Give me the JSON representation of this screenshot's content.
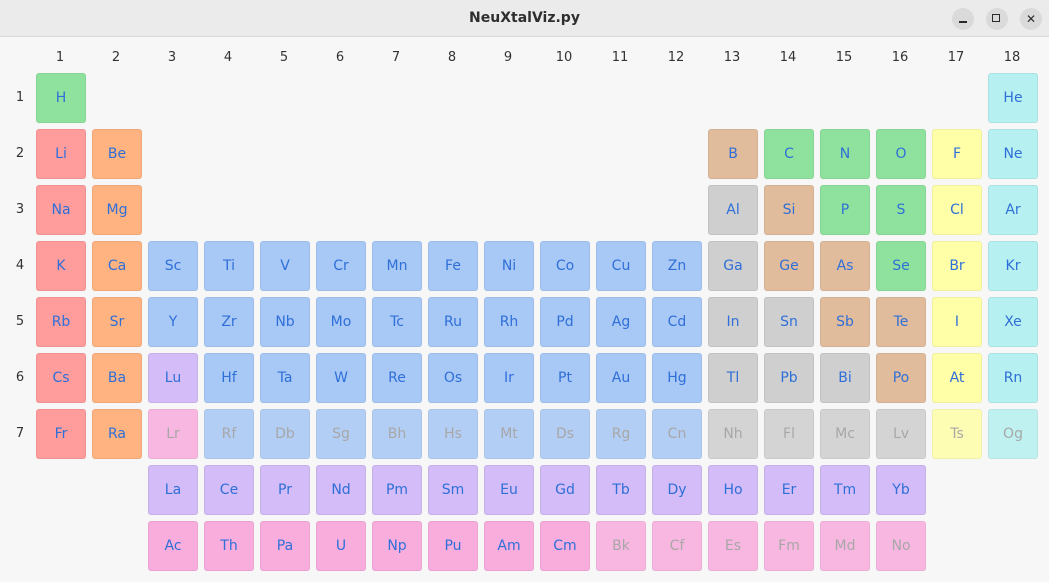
{
  "window": {
    "title": "NeuXtalViz.py",
    "minimize_icon": "minimize-icon",
    "maximize_icon": "maximize-icon",
    "close_icon": "close-icon",
    "close_glyph": "✕"
  },
  "colors": {
    "hydrogen_nonmetal": "#8fe29e",
    "alkali_metal": "#ff9c9c",
    "alkaline_earth": "#ffb380",
    "transition_metal": "#a8c8f5",
    "metalloid": "#e0bc9c",
    "post_transition": "#cfcfcf",
    "halogen": "#ffffa8",
    "noble_gas": "#b7f0f0",
    "lanthanide": "#d3bcf7",
    "actinide": "#f9addd",
    "symbol_active": "#2f6fd8",
    "symbol_disabled": "#9a9a9a"
  },
  "group_labels": [
    "1",
    "2",
    "3",
    "4",
    "5",
    "6",
    "7",
    "8",
    "9",
    "10",
    "11",
    "12",
    "13",
    "14",
    "15",
    "16",
    "17",
    "18"
  ],
  "period_labels": [
    "1",
    "2",
    "3",
    "4",
    "5",
    "6",
    "7"
  ],
  "elements": [
    {
      "symbol": "H",
      "col": 1,
      "row": 1,
      "cat": "hydrogen_nonmetal",
      "enabled": true
    },
    {
      "symbol": "He",
      "col": 18,
      "row": 1,
      "cat": "noble_gas",
      "enabled": true
    },
    {
      "symbol": "Li",
      "col": 1,
      "row": 2,
      "cat": "alkali_metal",
      "enabled": true
    },
    {
      "symbol": "Be",
      "col": 2,
      "row": 2,
      "cat": "alkaline_earth",
      "enabled": true
    },
    {
      "symbol": "B",
      "col": 13,
      "row": 2,
      "cat": "metalloid",
      "enabled": true
    },
    {
      "symbol": "C",
      "col": 14,
      "row": 2,
      "cat": "hydrogen_nonmetal",
      "enabled": true
    },
    {
      "symbol": "N",
      "col": 15,
      "row": 2,
      "cat": "hydrogen_nonmetal",
      "enabled": true
    },
    {
      "symbol": "O",
      "col": 16,
      "row": 2,
      "cat": "hydrogen_nonmetal",
      "enabled": true
    },
    {
      "symbol": "F",
      "col": 17,
      "row": 2,
      "cat": "halogen",
      "enabled": true
    },
    {
      "symbol": "Ne",
      "col": 18,
      "row": 2,
      "cat": "noble_gas",
      "enabled": true
    },
    {
      "symbol": "Na",
      "col": 1,
      "row": 3,
      "cat": "alkali_metal",
      "enabled": true
    },
    {
      "symbol": "Mg",
      "col": 2,
      "row": 3,
      "cat": "alkaline_earth",
      "enabled": true
    },
    {
      "symbol": "Al",
      "col": 13,
      "row": 3,
      "cat": "post_transition",
      "enabled": true
    },
    {
      "symbol": "Si",
      "col": 14,
      "row": 3,
      "cat": "metalloid",
      "enabled": true
    },
    {
      "symbol": "P",
      "col": 15,
      "row": 3,
      "cat": "hydrogen_nonmetal",
      "enabled": true
    },
    {
      "symbol": "S",
      "col": 16,
      "row": 3,
      "cat": "hydrogen_nonmetal",
      "enabled": true
    },
    {
      "symbol": "Cl",
      "col": 17,
      "row": 3,
      "cat": "halogen",
      "enabled": true
    },
    {
      "symbol": "Ar",
      "col": 18,
      "row": 3,
      "cat": "noble_gas",
      "enabled": true
    },
    {
      "symbol": "K",
      "col": 1,
      "row": 4,
      "cat": "alkali_metal",
      "enabled": true
    },
    {
      "symbol": "Ca",
      "col": 2,
      "row": 4,
      "cat": "alkaline_earth",
      "enabled": true
    },
    {
      "symbol": "Sc",
      "col": 3,
      "row": 4,
      "cat": "transition_metal",
      "enabled": true
    },
    {
      "symbol": "Ti",
      "col": 4,
      "row": 4,
      "cat": "transition_metal",
      "enabled": true
    },
    {
      "symbol": "V",
      "col": 5,
      "row": 4,
      "cat": "transition_metal",
      "enabled": true
    },
    {
      "symbol": "Cr",
      "col": 6,
      "row": 4,
      "cat": "transition_metal",
      "enabled": true
    },
    {
      "symbol": "Mn",
      "col": 7,
      "row": 4,
      "cat": "transition_metal",
      "enabled": true
    },
    {
      "symbol": "Fe",
      "col": 8,
      "row": 4,
      "cat": "transition_metal",
      "enabled": true
    },
    {
      "symbol": "Ni",
      "col": 9,
      "row": 4,
      "cat": "transition_metal",
      "enabled": true
    },
    {
      "symbol": "Co",
      "col": 10,
      "row": 4,
      "cat": "transition_metal",
      "enabled": true
    },
    {
      "symbol": "Cu",
      "col": 11,
      "row": 4,
      "cat": "transition_metal",
      "enabled": true
    },
    {
      "symbol": "Zn",
      "col": 12,
      "row": 4,
      "cat": "transition_metal",
      "enabled": true
    },
    {
      "symbol": "Ga",
      "col": 13,
      "row": 4,
      "cat": "post_transition",
      "enabled": true
    },
    {
      "symbol": "Ge",
      "col": 14,
      "row": 4,
      "cat": "metalloid",
      "enabled": true
    },
    {
      "symbol": "As",
      "col": 15,
      "row": 4,
      "cat": "metalloid",
      "enabled": true
    },
    {
      "symbol": "Se",
      "col": 16,
      "row": 4,
      "cat": "hydrogen_nonmetal",
      "enabled": true
    },
    {
      "symbol": "Br",
      "col": 17,
      "row": 4,
      "cat": "halogen",
      "enabled": true
    },
    {
      "symbol": "Kr",
      "col": 18,
      "row": 4,
      "cat": "noble_gas",
      "enabled": true
    },
    {
      "symbol": "Rb",
      "col": 1,
      "row": 5,
      "cat": "alkali_metal",
      "enabled": true
    },
    {
      "symbol": "Sr",
      "col": 2,
      "row": 5,
      "cat": "alkaline_earth",
      "enabled": true
    },
    {
      "symbol": "Y",
      "col": 3,
      "row": 5,
      "cat": "transition_metal",
      "enabled": true
    },
    {
      "symbol": "Zr",
      "col": 4,
      "row": 5,
      "cat": "transition_metal",
      "enabled": true
    },
    {
      "symbol": "Nb",
      "col": 5,
      "row": 5,
      "cat": "transition_metal",
      "enabled": true
    },
    {
      "symbol": "Mo",
      "col": 6,
      "row": 5,
      "cat": "transition_metal",
      "enabled": true
    },
    {
      "symbol": "Tc",
      "col": 7,
      "row": 5,
      "cat": "transition_metal",
      "enabled": true
    },
    {
      "symbol": "Ru",
      "col": 8,
      "row": 5,
      "cat": "transition_metal",
      "enabled": true
    },
    {
      "symbol": "Rh",
      "col": 9,
      "row": 5,
      "cat": "transition_metal",
      "enabled": true
    },
    {
      "symbol": "Pd",
      "col": 10,
      "row": 5,
      "cat": "transition_metal",
      "enabled": true
    },
    {
      "symbol": "Ag",
      "col": 11,
      "row": 5,
      "cat": "transition_metal",
      "enabled": true
    },
    {
      "symbol": "Cd",
      "col": 12,
      "row": 5,
      "cat": "transition_metal",
      "enabled": true
    },
    {
      "symbol": "In",
      "col": 13,
      "row": 5,
      "cat": "post_transition",
      "enabled": true
    },
    {
      "symbol": "Sn",
      "col": 14,
      "row": 5,
      "cat": "post_transition",
      "enabled": true
    },
    {
      "symbol": "Sb",
      "col": 15,
      "row": 5,
      "cat": "metalloid",
      "enabled": true
    },
    {
      "symbol": "Te",
      "col": 16,
      "row": 5,
      "cat": "metalloid",
      "enabled": true
    },
    {
      "symbol": "I",
      "col": 17,
      "row": 5,
      "cat": "halogen",
      "enabled": true
    },
    {
      "symbol": "Xe",
      "col": 18,
      "row": 5,
      "cat": "noble_gas",
      "enabled": true
    },
    {
      "symbol": "Cs",
      "col": 1,
      "row": 6,
      "cat": "alkali_metal",
      "enabled": true
    },
    {
      "symbol": "Ba",
      "col": 2,
      "row": 6,
      "cat": "alkaline_earth",
      "enabled": true
    },
    {
      "symbol": "Lu",
      "col": 3,
      "row": 6,
      "cat": "lanthanide",
      "enabled": true
    },
    {
      "symbol": "Hf",
      "col": 4,
      "row": 6,
      "cat": "transition_metal",
      "enabled": true
    },
    {
      "symbol": "Ta",
      "col": 5,
      "row": 6,
      "cat": "transition_metal",
      "enabled": true
    },
    {
      "symbol": "W",
      "col": 6,
      "row": 6,
      "cat": "transition_metal",
      "enabled": true
    },
    {
      "symbol": "Re",
      "col": 7,
      "row": 6,
      "cat": "transition_metal",
      "enabled": true
    },
    {
      "symbol": "Os",
      "col": 8,
      "row": 6,
      "cat": "transition_metal",
      "enabled": true
    },
    {
      "symbol": "Ir",
      "col": 9,
      "row": 6,
      "cat": "transition_metal",
      "enabled": true
    },
    {
      "symbol": "Pt",
      "col": 10,
      "row": 6,
      "cat": "transition_metal",
      "enabled": true
    },
    {
      "symbol": "Au",
      "col": 11,
      "row": 6,
      "cat": "transition_metal",
      "enabled": true
    },
    {
      "symbol": "Hg",
      "col": 12,
      "row": 6,
      "cat": "transition_metal",
      "enabled": true
    },
    {
      "symbol": "Tl",
      "col": 13,
      "row": 6,
      "cat": "post_transition",
      "enabled": true
    },
    {
      "symbol": "Pb",
      "col": 14,
      "row": 6,
      "cat": "post_transition",
      "enabled": true
    },
    {
      "symbol": "Bi",
      "col": 15,
      "row": 6,
      "cat": "post_transition",
      "enabled": true
    },
    {
      "symbol": "Po",
      "col": 16,
      "row": 6,
      "cat": "metalloid",
      "enabled": true
    },
    {
      "symbol": "At",
      "col": 17,
      "row": 6,
      "cat": "halogen",
      "enabled": true
    },
    {
      "symbol": "Rn",
      "col": 18,
      "row": 6,
      "cat": "noble_gas",
      "enabled": true
    },
    {
      "symbol": "Fr",
      "col": 1,
      "row": 7,
      "cat": "alkali_metal",
      "enabled": true
    },
    {
      "symbol": "Ra",
      "col": 2,
      "row": 7,
      "cat": "alkaline_earth",
      "enabled": true
    },
    {
      "symbol": "Lr",
      "col": 3,
      "row": 7,
      "cat": "actinide",
      "enabled": false
    },
    {
      "symbol": "Rf",
      "col": 4,
      "row": 7,
      "cat": "transition_metal",
      "enabled": false
    },
    {
      "symbol": "Db",
      "col": 5,
      "row": 7,
      "cat": "transition_metal",
      "enabled": false
    },
    {
      "symbol": "Sg",
      "col": 6,
      "row": 7,
      "cat": "transition_metal",
      "enabled": false
    },
    {
      "symbol": "Bh",
      "col": 7,
      "row": 7,
      "cat": "transition_metal",
      "enabled": false
    },
    {
      "symbol": "Hs",
      "col": 8,
      "row": 7,
      "cat": "transition_metal",
      "enabled": false
    },
    {
      "symbol": "Mt",
      "col": 9,
      "row": 7,
      "cat": "transition_metal",
      "enabled": false
    },
    {
      "symbol": "Ds",
      "col": 10,
      "row": 7,
      "cat": "transition_metal",
      "enabled": false
    },
    {
      "symbol": "Rg",
      "col": 11,
      "row": 7,
      "cat": "transition_metal",
      "enabled": false
    },
    {
      "symbol": "Cn",
      "col": 12,
      "row": 7,
      "cat": "transition_metal",
      "enabled": false
    },
    {
      "symbol": "Nh",
      "col": 13,
      "row": 7,
      "cat": "post_transition",
      "enabled": false
    },
    {
      "symbol": "Fl",
      "col": 14,
      "row": 7,
      "cat": "post_transition",
      "enabled": false
    },
    {
      "symbol": "Mc",
      "col": 15,
      "row": 7,
      "cat": "post_transition",
      "enabled": false
    },
    {
      "symbol": "Lv",
      "col": 16,
      "row": 7,
      "cat": "post_transition",
      "enabled": false
    },
    {
      "symbol": "Ts",
      "col": 17,
      "row": 7,
      "cat": "halogen",
      "enabled": false
    },
    {
      "symbol": "Og",
      "col": 18,
      "row": 7,
      "cat": "noble_gas",
      "enabled": false
    },
    {
      "symbol": "La",
      "col": 3,
      "row": 8,
      "cat": "lanthanide",
      "enabled": true
    },
    {
      "symbol": "Ce",
      "col": 4,
      "row": 8,
      "cat": "lanthanide",
      "enabled": true
    },
    {
      "symbol": "Pr",
      "col": 5,
      "row": 8,
      "cat": "lanthanide",
      "enabled": true
    },
    {
      "symbol": "Nd",
      "col": 6,
      "row": 8,
      "cat": "lanthanide",
      "enabled": true
    },
    {
      "symbol": "Pm",
      "col": 7,
      "row": 8,
      "cat": "lanthanide",
      "enabled": true
    },
    {
      "symbol": "Sm",
      "col": 8,
      "row": 8,
      "cat": "lanthanide",
      "enabled": true
    },
    {
      "symbol": "Eu",
      "col": 9,
      "row": 8,
      "cat": "lanthanide",
      "enabled": true
    },
    {
      "symbol": "Gd",
      "col": 10,
      "row": 8,
      "cat": "lanthanide",
      "enabled": true
    },
    {
      "symbol": "Tb",
      "col": 11,
      "row": 8,
      "cat": "lanthanide",
      "enabled": true
    },
    {
      "symbol": "Dy",
      "col": 12,
      "row": 8,
      "cat": "lanthanide",
      "enabled": true
    },
    {
      "symbol": "Ho",
      "col": 13,
      "row": 8,
      "cat": "lanthanide",
      "enabled": true
    },
    {
      "symbol": "Er",
      "col": 14,
      "row": 8,
      "cat": "lanthanide",
      "enabled": true
    },
    {
      "symbol": "Tm",
      "col": 15,
      "row": 8,
      "cat": "lanthanide",
      "enabled": true
    },
    {
      "symbol": "Yb",
      "col": 16,
      "row": 8,
      "cat": "lanthanide",
      "enabled": true
    },
    {
      "symbol": "Ac",
      "col": 3,
      "row": 9,
      "cat": "actinide",
      "enabled": true
    },
    {
      "symbol": "Th",
      "col": 4,
      "row": 9,
      "cat": "actinide",
      "enabled": true
    },
    {
      "symbol": "Pa",
      "col": 5,
      "row": 9,
      "cat": "actinide",
      "enabled": true
    },
    {
      "symbol": "U",
      "col": 6,
      "row": 9,
      "cat": "actinide",
      "enabled": true
    },
    {
      "symbol": "Np",
      "col": 7,
      "row": 9,
      "cat": "actinide",
      "enabled": true
    },
    {
      "symbol": "Pu",
      "col": 8,
      "row": 9,
      "cat": "actinide",
      "enabled": true
    },
    {
      "symbol": "Am",
      "col": 9,
      "row": 9,
      "cat": "actinide",
      "enabled": true
    },
    {
      "symbol": "Cm",
      "col": 10,
      "row": 9,
      "cat": "actinide",
      "enabled": true
    },
    {
      "symbol": "Bk",
      "col": 11,
      "row": 9,
      "cat": "actinide",
      "enabled": false
    },
    {
      "symbol": "Cf",
      "col": 12,
      "row": 9,
      "cat": "actinide",
      "enabled": false
    },
    {
      "symbol": "Es",
      "col": 13,
      "row": 9,
      "cat": "actinide",
      "enabled": false
    },
    {
      "symbol": "Fm",
      "col": 14,
      "row": 9,
      "cat": "actinide",
      "enabled": false
    },
    {
      "symbol": "Md",
      "col": 15,
      "row": 9,
      "cat": "actinide",
      "enabled": false
    },
    {
      "symbol": "No",
      "col": 16,
      "row": 9,
      "cat": "actinide",
      "enabled": false
    }
  ]
}
